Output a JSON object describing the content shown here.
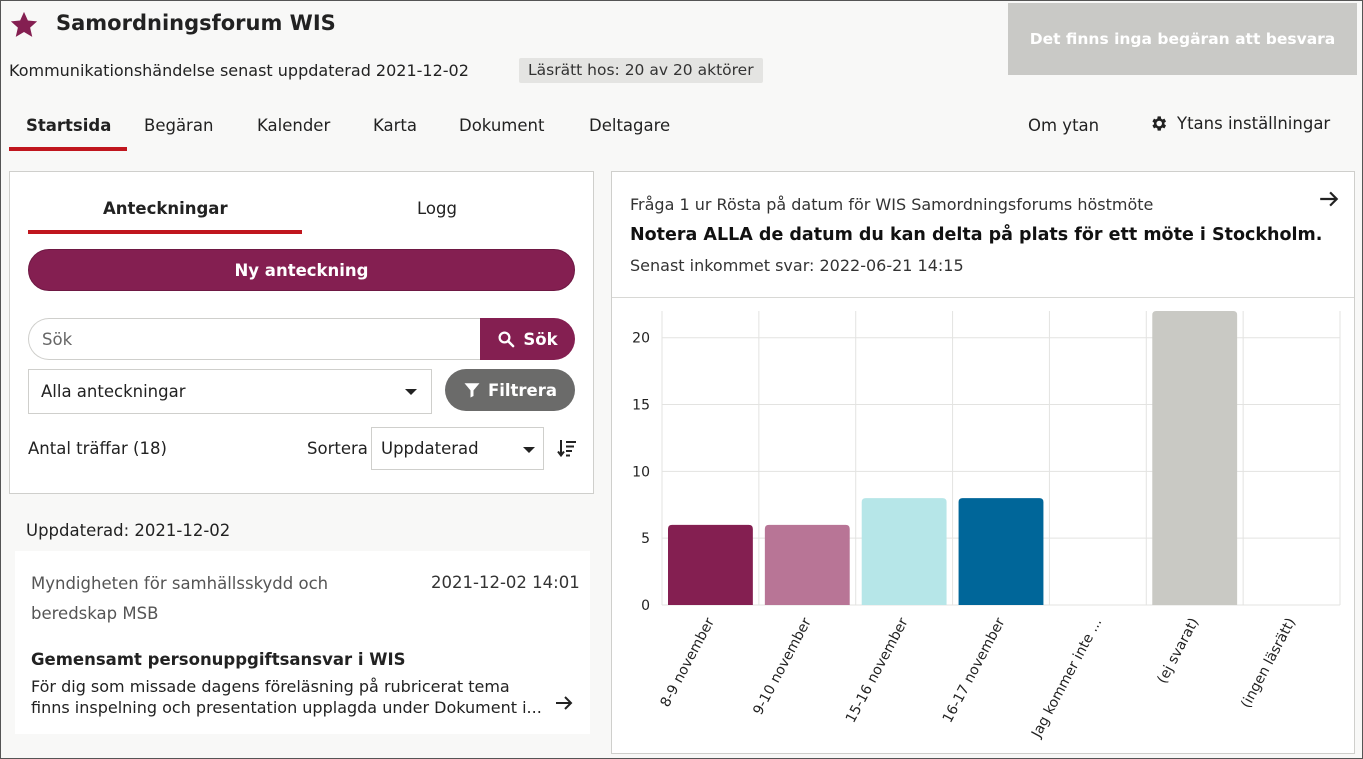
{
  "header": {
    "title": "Samordningsforum WIS",
    "subline": "Kommunikationshändelse senast uppdaterad 2021-12-02",
    "access_badge": "Läsrätt hos: 20 av 20 aktörer",
    "request_button": "Det finns inga begäran att besvara"
  },
  "nav": {
    "tabs": [
      "Startsida",
      "Begäran",
      "Kalender",
      "Karta",
      "Dokument",
      "Deltagare"
    ],
    "about": "Om ytan",
    "settings": "Ytans inställningar"
  },
  "notes": {
    "tabs": [
      "Anteckningar",
      "Logg"
    ],
    "new_note": "Ny anteckning",
    "search_placeholder": "Sök",
    "search_button": "Sök",
    "filter_select": "Alla anteckningar",
    "filter_button": "Filtrera",
    "hits": "Antal träffar (18)",
    "sort_label": "Sortera",
    "sort_select": "Uppdaterad",
    "updated_heading": "Uppdaterad: 2021-12-02",
    "items": [
      {
        "org": "Myndigheten för samhällsskydd och beredskap MSB",
        "date": "2021-12-02 14:01",
        "title": "Gemensamt personuppgiftsansvar i WIS",
        "body_line1": "För dig som missade dagens föreläsning på rubricerat tema",
        "body_line2": "finns inspelning och presentation upplagda under Dokument i..."
      }
    ]
  },
  "question": {
    "source": "Fråga 1 ur Rösta på datum för WIS Samordningsforums höstmöte",
    "title": "Notera ALLA de datum du kan delta på plats för ett möte i Stockholm.",
    "last_answer": "Senast inkommet svar: 2022-06-21 14:15"
  },
  "colors": {
    "brand": "#841f51",
    "accent_red": "#c0161e"
  },
  "chart_data": {
    "type": "bar",
    "categories": [
      "8-9 november",
      "9-10 november",
      "15-16 november",
      "16-17 november",
      "Jag kommer inte ...",
      "(ej svarat)",
      "(ingen läsrätt)"
    ],
    "values": [
      6,
      6,
      8,
      8,
      0,
      22,
      0
    ],
    "colors": [
      "#841f51",
      "#b87596",
      "#b6e6e8",
      "#006699",
      "#cccccc",
      "#c9c9c4",
      "#cccccc"
    ],
    "yticks": [
      0,
      5,
      10,
      15,
      20
    ],
    "ylim": [
      0,
      22
    ],
    "grid": true
  }
}
